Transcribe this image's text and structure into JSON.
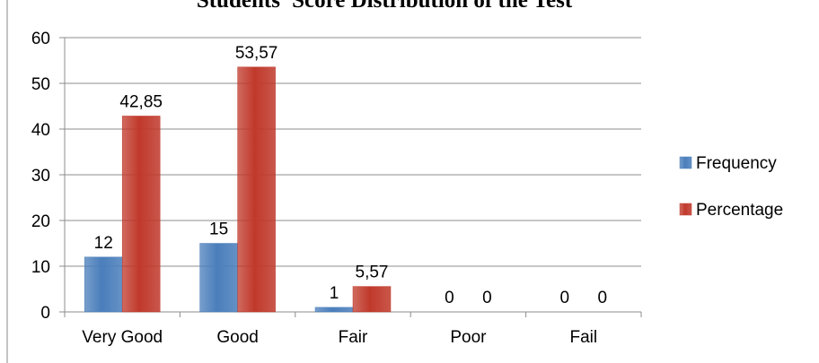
{
  "chart_data": {
    "type": "bar",
    "title": "Students' Score Distribution of the Test",
    "categories": [
      "Very Good",
      "Good",
      "Fair",
      "Poor",
      "Fail"
    ],
    "series": [
      {
        "name": "Frequency",
        "color": "#4a7ebb",
        "values": [
          12,
          15,
          1,
          0,
          0
        ],
        "labels": [
          "12",
          "15",
          "1",
          "0",
          "0"
        ]
      },
      {
        "name": "Percentage",
        "color": "#c0392b",
        "values": [
          42.85,
          53.57,
          5.57,
          0,
          0
        ],
        "labels": [
          "42,85",
          "53,57",
          "5,57",
          "0",
          "0"
        ]
      }
    ],
    "ylim": [
      0,
      60
    ],
    "yticks": [
      "0",
      "10",
      "20",
      "30",
      "40",
      "50",
      "60"
    ],
    "grid": true,
    "legend": "right"
  }
}
